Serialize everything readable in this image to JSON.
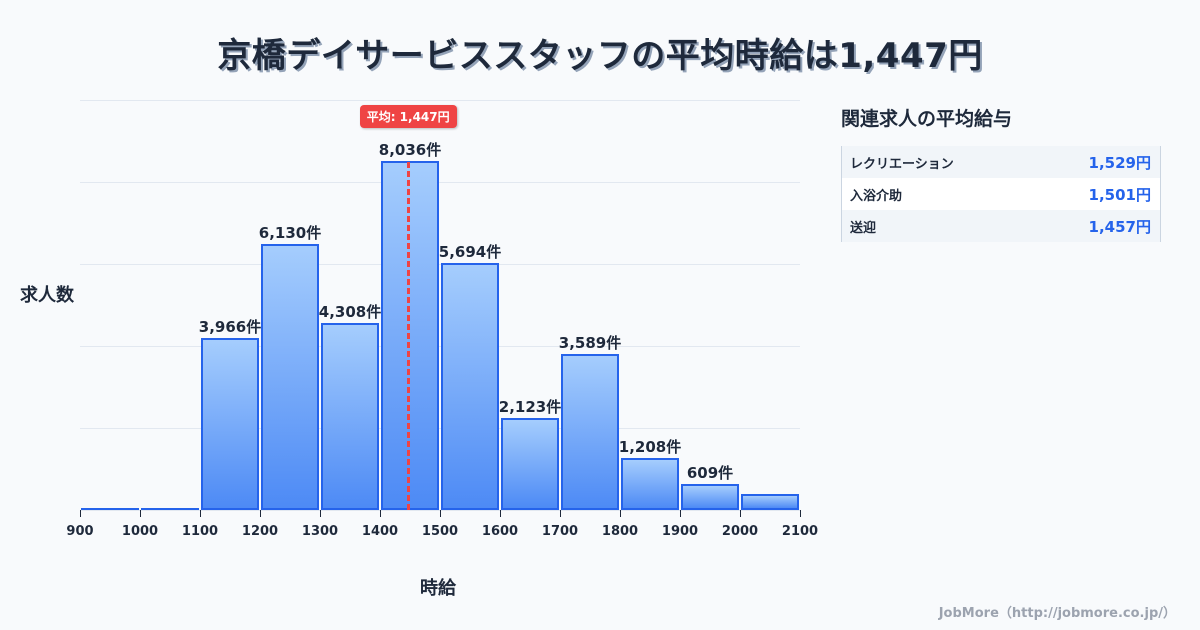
{
  "title": "京橋デイサービススタッフの平均時給は1,447円",
  "chart_data": {
    "type": "bar",
    "title": "京橋デイサービススタッフの平均時給は1,447円",
    "xlabel": "時給",
    "ylabel": "求人数",
    "bin_edges": [
      900,
      1000,
      1100,
      1200,
      1300,
      1400,
      1500,
      1600,
      1700,
      1800,
      1900,
      2000,
      2100
    ],
    "categories": [
      "900-1000",
      "1000-1100",
      "1100-1200",
      "1200-1300",
      "1300-1400",
      "1400-1500",
      "1500-1600",
      "1600-1700",
      "1700-1800",
      "1800-1900",
      "1900-2000",
      "2000-2100"
    ],
    "values": [
      0,
      0,
      3966,
      6130,
      4308,
      8036,
      5694,
      2123,
      3589,
      1208,
      609,
      370
    ],
    "value_labels": [
      "",
      "",
      "3,966件",
      "6,130件",
      "4,308件",
      "8,036件",
      "5,694件",
      "2,123件",
      "3,589件",
      "1,208件",
      "609件",
      ""
    ],
    "xlim": [
      900,
      2100
    ],
    "ylim": [
      0,
      9450
    ],
    "grid": true,
    "annotations": [
      {
        "type": "vline",
        "x": 1447,
        "label": "平均: 1,447円",
        "color": "#ef4444"
      }
    ],
    "bar_color": "#4d8af5",
    "bar_edge_color": "#2563eb"
  },
  "axis": {
    "ylabel": "求人数",
    "xlabel": "時給",
    "xticks": [
      "900",
      "1000",
      "1100",
      "1200",
      "1300",
      "1400",
      "1500",
      "1600",
      "1700",
      "1800",
      "1900",
      "2000",
      "2100"
    ]
  },
  "average": {
    "label": "平均: 1,447円",
    "value": 1447,
    "color": "#ef4444"
  },
  "related": {
    "title": "関連求人の平均給与",
    "rows": [
      {
        "name": "レクリエーション",
        "value": "1,529円"
      },
      {
        "name": "入浴介助",
        "value": "1,501円"
      },
      {
        "name": "送迎",
        "value": "1,457円"
      }
    ]
  },
  "footer": "JobMore（http://jobmore.co.jp/）"
}
